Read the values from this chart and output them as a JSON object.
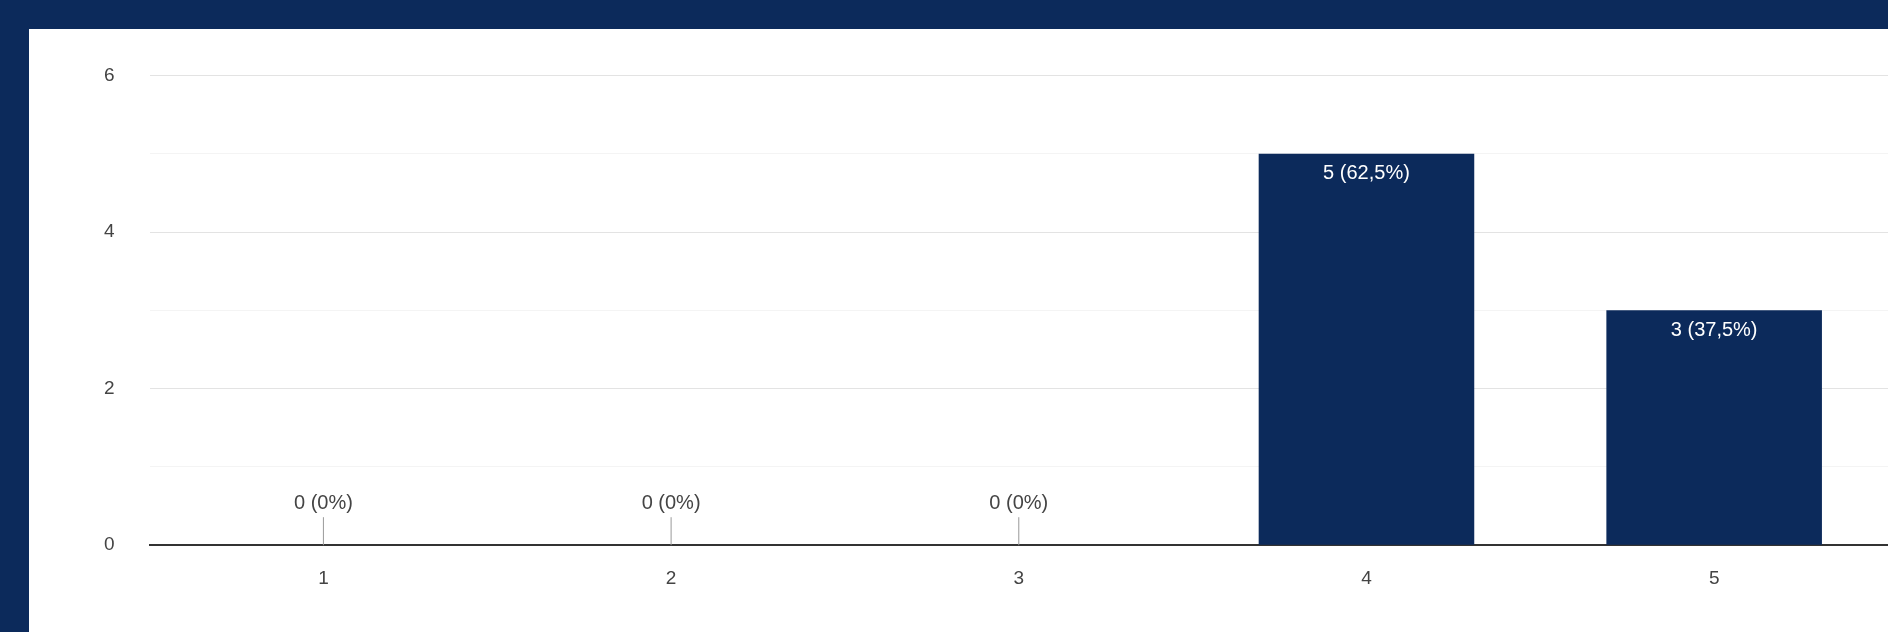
{
  "chart_data": {
    "type": "bar",
    "categories": [
      "1",
      "2",
      "3",
      "4",
      "5"
    ],
    "values": [
      0,
      0,
      0,
      5,
      3
    ],
    "color": "#0c2a5b",
    "value_labels": [
      "0 (0%)",
      "0 (0%)",
      "0 (0%)",
      "5 (62,5%)",
      "3 (37,5%)"
    ],
    "ylim": [
      0,
      6
    ],
    "yticks": [
      0,
      {
        "value": 1,
        "label": null
      },
      2,
      {
        "value": 3,
        "label": null
      },
      4,
      {
        "value": 5,
        "label": null
      },
      6
    ],
    "grid": true,
    "legend": false
  }
}
